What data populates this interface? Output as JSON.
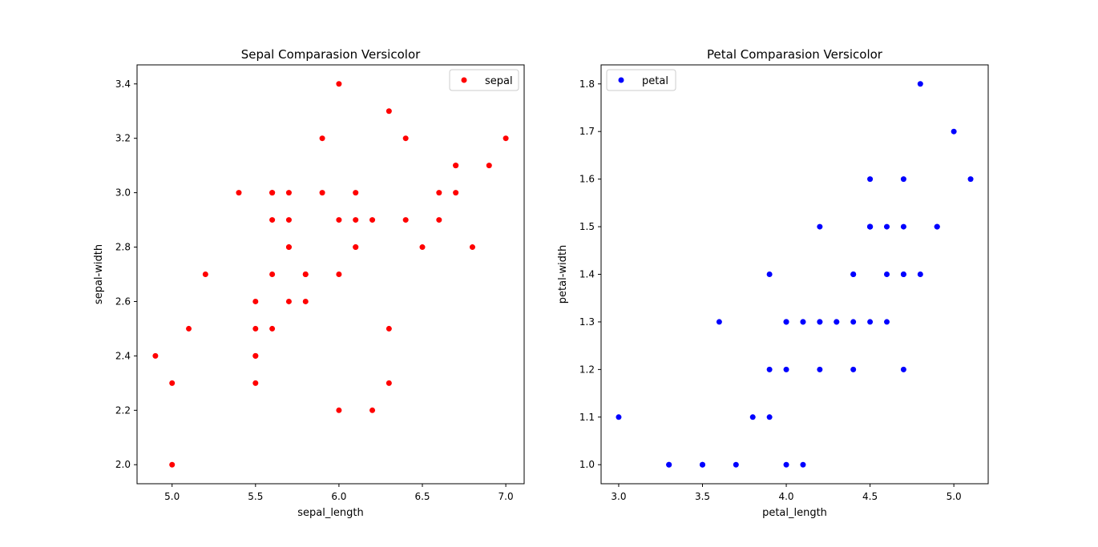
{
  "chart_data": [
    {
      "type": "scatter",
      "title": "Sepal Comparasion Versicolor",
      "xlabel": "sepal_length",
      "ylabel": "sepal-width",
      "xlim": [
        4.79,
        7.11
      ],
      "ylim": [
        1.93,
        3.47
      ],
      "xticks": [
        5.0,
        5.5,
        6.0,
        6.5,
        7.0
      ],
      "xtick_labels": [
        "5.0",
        "5.5",
        "6.0",
        "6.5",
        "7.0"
      ],
      "yticks": [
        2.0,
        2.2,
        2.4,
        2.6,
        2.8,
        3.0,
        3.2,
        3.4
      ],
      "ytick_labels": [
        "2.0",
        "2.2",
        "2.4",
        "2.6",
        "2.8",
        "3.0",
        "3.2",
        "3.4"
      ],
      "grid": false,
      "legend": {
        "position": "top-right",
        "entries": [
          "sepal"
        ]
      },
      "series": [
        {
          "name": "sepal",
          "color": "#ff0000",
          "x": [
            7.0,
            6.4,
            6.9,
            5.5,
            6.5,
            5.7,
            6.3,
            4.9,
            6.6,
            5.2,
            5.0,
            5.9,
            6.0,
            6.1,
            5.6,
            6.7,
            5.6,
            5.8,
            6.2,
            5.6,
            5.9,
            6.1,
            6.3,
            6.1,
            6.4,
            6.6,
            6.8,
            6.7,
            6.0,
            5.7,
            5.5,
            5.5,
            5.8,
            6.0,
            5.4,
            6.0,
            6.7,
            6.3,
            5.6,
            5.5,
            5.5,
            6.1,
            5.8,
            5.0,
            5.6,
            5.7,
            5.7,
            6.2,
            5.1,
            5.7
          ],
          "y": [
            3.2,
            3.2,
            3.1,
            2.3,
            2.8,
            2.8,
            3.3,
            2.4,
            2.9,
            2.7,
            2.0,
            3.0,
            2.2,
            2.9,
            2.9,
            3.1,
            3.0,
            2.7,
            2.2,
            2.5,
            3.2,
            2.8,
            2.5,
            2.8,
            2.9,
            3.0,
            2.8,
            3.0,
            2.9,
            2.6,
            2.4,
            2.4,
            2.7,
            2.7,
            3.0,
            3.4,
            3.1,
            2.3,
            3.0,
            2.5,
            2.6,
            3.0,
            2.6,
            2.3,
            2.7,
            3.0,
            2.9,
            2.9,
            2.5,
            2.8
          ]
        }
      ]
    },
    {
      "type": "scatter",
      "title": "Petal Comparasion Versicolor",
      "xlabel": "petal_length",
      "ylabel": "petal-width",
      "xlim": [
        2.895,
        5.205
      ],
      "ylim": [
        0.96,
        1.84
      ],
      "xticks": [
        3.0,
        3.5,
        4.0,
        4.5,
        5.0
      ],
      "xtick_labels": [
        "3.0",
        "3.5",
        "4.0",
        "4.5",
        "5.0"
      ],
      "yticks": [
        1.0,
        1.1,
        1.2,
        1.3,
        1.4,
        1.5,
        1.6,
        1.7,
        1.8
      ],
      "ytick_labels": [
        "1.0",
        "1.1",
        "1.2",
        "1.3",
        "1.4",
        "1.5",
        "1.6",
        "1.7",
        "1.8"
      ],
      "grid": false,
      "legend": {
        "position": "top-left",
        "entries": [
          "petal"
        ]
      },
      "series": [
        {
          "name": "petal",
          "color": "#0000ff",
          "x": [
            4.7,
            4.5,
            4.9,
            4.0,
            4.6,
            4.5,
            4.7,
            3.3,
            4.6,
            3.9,
            3.5,
            4.2,
            4.0,
            4.7,
            3.6,
            4.4,
            4.5,
            4.1,
            4.5,
            3.9,
            4.8,
            4.0,
            4.9,
            4.7,
            4.3,
            4.4,
            4.8,
            5.0,
            4.5,
            3.5,
            3.8,
            3.7,
            3.9,
            5.1,
            4.5,
            4.5,
            4.7,
            4.4,
            4.1,
            4.0,
            4.4,
            4.6,
            4.0,
            3.3,
            4.2,
            4.2,
            4.2,
            4.3,
            3.0,
            4.1
          ],
          "y": [
            1.4,
            1.5,
            1.5,
            1.3,
            1.5,
            1.3,
            1.6,
            1.0,
            1.3,
            1.4,
            1.0,
            1.5,
            1.0,
            1.4,
            1.3,
            1.4,
            1.5,
            1.0,
            1.5,
            1.1,
            1.8,
            1.3,
            1.5,
            1.2,
            1.3,
            1.4,
            1.4,
            1.7,
            1.5,
            1.0,
            1.1,
            1.0,
            1.2,
            1.6,
            1.5,
            1.6,
            1.5,
            1.3,
            1.3,
            1.3,
            1.2,
            1.4,
            1.2,
            1.0,
            1.3,
            1.2,
            1.3,
            1.3,
            1.1,
            1.3
          ]
        }
      ]
    }
  ]
}
